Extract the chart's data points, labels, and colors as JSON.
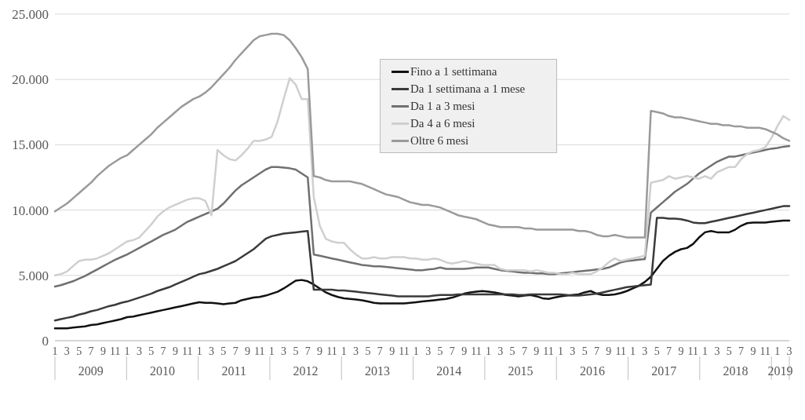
{
  "chart_data": {
    "type": "line",
    "categories": [
      "1",
      null,
      "3",
      null,
      "5",
      null,
      "7",
      null,
      "9",
      null,
      "11",
      null,
      "1",
      null,
      "3",
      null,
      "5",
      null,
      "7",
      null,
      "9",
      null,
      "11",
      null,
      "1",
      null,
      "3",
      null,
      "5",
      null,
      "7",
      null,
      "9",
      null,
      "11",
      null,
      "1",
      null,
      "3",
      null,
      "5",
      null,
      "7",
      null,
      "9",
      null,
      "11",
      null,
      "1",
      null,
      "3",
      null,
      "5",
      null,
      "7",
      null,
      "9",
      null,
      "11",
      null,
      "1",
      null,
      "3",
      null,
      "5",
      null,
      "7",
      null,
      "9",
      null,
      "11",
      null,
      "1",
      null,
      "3",
      null,
      "5",
      null,
      "7",
      null,
      "9",
      null,
      "11",
      null,
      "1",
      null,
      "3",
      null,
      "5",
      null,
      "7",
      null,
      "9",
      null,
      "11",
      null,
      "1",
      null,
      "3",
      null,
      "5",
      null,
      "7",
      null,
      "9",
      null,
      "11",
      null,
      "1",
      null,
      "3",
      null,
      "5",
      null,
      "7",
      null,
      "9",
      null,
      "11",
      null,
      "1",
      null,
      "3"
    ],
    "annotations": [
      "2009",
      "2010",
      "2011",
      "2012",
      "2013",
      "2014",
      "2015",
      "2016",
      "2017",
      "2018",
      "2019"
    ],
    "series": [
      {
        "name": "Fino a 1 settimana",
        "color": "#111111",
        "values": [
          950,
          950,
          950,
          1000,
          1050,
          1100,
          1200,
          1250,
          1350,
          1450,
          1550,
          1650,
          1800,
          1850,
          1950,
          2050,
          2150,
          2250,
          2350,
          2450,
          2550,
          2650,
          2750,
          2850,
          2950,
          2900,
          2900,
          2850,
          2800,
          2850,
          2900,
          3100,
          3200,
          3300,
          3350,
          3450,
          3600,
          3750,
          4000,
          4300,
          4600,
          4650,
          4550,
          4300,
          4000,
          3700,
          3500,
          3350,
          3250,
          3200,
          3150,
          3100,
          3000,
          2900,
          2850,
          2850,
          2850,
          2850,
          2850,
          2900,
          2950,
          3000,
          3050,
          3100,
          3150,
          3200,
          3300,
          3450,
          3600,
          3700,
          3750,
          3800,
          3750,
          3700,
          3600,
          3500,
          3450,
          3400,
          3450,
          3500,
          3400,
          3250,
          3200,
          3300,
          3400,
          3450,
          3500,
          3550,
          3700,
          3800,
          3600,
          3500,
          3500,
          3550,
          3650,
          3800,
          4000,
          4200,
          4500,
          4900,
          5500,
          6100,
          6500,
          6800,
          7000,
          7100,
          7400,
          7900,
          8300,
          8400,
          8300,
          8300,
          8300,
          8500,
          8800,
          9000,
          9050,
          9050,
          9050,
          9100,
          9150,
          9200,
          9200
        ]
      },
      {
        "name": "Da 1 settimana a 1 mese",
        "color": "#3a3a3a",
        "values": [
          1550,
          1650,
          1750,
          1850,
          2000,
          2100,
          2250,
          2350,
          2500,
          2650,
          2750,
          2900,
          3000,
          3150,
          3300,
          3450,
          3600,
          3800,
          3950,
          4100,
          4300,
          4500,
          4700,
          4900,
          5100,
          5200,
          5350,
          5500,
          5700,
          5900,
          6100,
          6400,
          6700,
          7000,
          7400,
          7800,
          8000,
          8100,
          8200,
          8250,
          8300,
          8350,
          8400,
          3900,
          3900,
          3900,
          3900,
          3850,
          3850,
          3800,
          3750,
          3700,
          3650,
          3600,
          3550,
          3500,
          3450,
          3400,
          3400,
          3400,
          3400,
          3400,
          3400,
          3450,
          3500,
          3500,
          3500,
          3550,
          3550,
          3550,
          3550,
          3550,
          3550,
          3550,
          3550,
          3550,
          3550,
          3500,
          3500,
          3550,
          3550,
          3550,
          3550,
          3550,
          3550,
          3500,
          3450,
          3450,
          3500,
          3550,
          3600,
          3700,
          3800,
          3900,
          4000,
          4100,
          4150,
          4200,
          4250,
          4300,
          9400,
          9400,
          9350,
          9350,
          9300,
          9200,
          9050,
          9000,
          9000,
          9100,
          9200,
          9300,
          9400,
          9500,
          9600,
          9700,
          9800,
          9900,
          10000,
          10100,
          10200,
          10300,
          10300
        ]
      },
      {
        "name": "Da 1 a 3 mesi",
        "color": "#707070",
        "values": [
          4150,
          4250,
          4400,
          4550,
          4750,
          4950,
          5200,
          5450,
          5700,
          5950,
          6200,
          6400,
          6600,
          6850,
          7100,
          7350,
          7600,
          7850,
          8100,
          8300,
          8500,
          8800,
          9100,
          9300,
          9500,
          9700,
          9900,
          10100,
          10500,
          11000,
          11500,
          11900,
          12200,
          12500,
          12800,
          13100,
          13300,
          13300,
          13250,
          13200,
          13100,
          12800,
          12500,
          6600,
          6500,
          6400,
          6300,
          6200,
          6100,
          6000,
          5900,
          5800,
          5750,
          5700,
          5700,
          5650,
          5600,
          5550,
          5500,
          5450,
          5400,
          5400,
          5450,
          5500,
          5600,
          5500,
          5500,
          5500,
          5500,
          5550,
          5600,
          5600,
          5600,
          5500,
          5400,
          5350,
          5300,
          5250,
          5200,
          5200,
          5150,
          5150,
          5100,
          5100,
          5150,
          5200,
          5250,
          5300,
          5350,
          5400,
          5450,
          5500,
          5600,
          5800,
          6000,
          6100,
          6150,
          6200,
          6250,
          9800,
          10200,
          10600,
          11000,
          11400,
          11700,
          12000,
          12400,
          12800,
          13100,
          13400,
          13700,
          13900,
          14100,
          14100,
          14200,
          14300,
          14400,
          14500,
          14600,
          14700,
          14750,
          14850,
          14900
        ]
      },
      {
        "name": "Da 4 a 6 mesi",
        "color": "#cfcfcf",
        "values": [
          5000,
          5100,
          5300,
          5700,
          6100,
          6200,
          6200,
          6300,
          6500,
          6700,
          7000,
          7300,
          7600,
          7700,
          7900,
          8400,
          8900,
          9500,
          9900,
          10200,
          10400,
          10600,
          10800,
          10900,
          10900,
          10700,
          9600,
          14600,
          14200,
          13900,
          13800,
          14200,
          14700,
          15300,
          15300,
          15400,
          15600,
          16800,
          18500,
          20100,
          19600,
          18500,
          18500,
          11000,
          8800,
          7800,
          7600,
          7500,
          7500,
          7000,
          6600,
          6300,
          6300,
          6400,
          6300,
          6300,
          6400,
          6400,
          6400,
          6300,
          6300,
          6200,
          6200,
          6300,
          6200,
          6000,
          5900,
          6000,
          6100,
          6000,
          5900,
          5800,
          5800,
          5800,
          5500,
          5400,
          5400,
          5400,
          5400,
          5300,
          5400,
          5300,
          5200,
          5200,
          5100,
          5100,
          5200,
          5100,
          5100,
          5100,
          5300,
          5600,
          6000,
          6300,
          6100,
          6200,
          6300,
          6400,
          6500,
          12100,
          12200,
          12300,
          12600,
          12400,
          12500,
          12600,
          12500,
          12400,
          12600,
          12400,
          12900,
          13100,
          13300,
          13300,
          13900,
          14300,
          14500,
          14600,
          14800,
          15500,
          16400,
          17200,
          16900
        ]
      },
      {
        "name": "Oltre 6 mesi",
        "color": "#9a9a9a",
        "values": [
          9900,
          10200,
          10500,
          10900,
          11300,
          11700,
          12100,
          12600,
          13000,
          13400,
          13700,
          14000,
          14200,
          14600,
          15000,
          15400,
          15800,
          16300,
          16700,
          17100,
          17500,
          17900,
          18200,
          18500,
          18700,
          19000,
          19400,
          19900,
          20400,
          20900,
          21500,
          22000,
          22500,
          23000,
          23300,
          23400,
          23500,
          23500,
          23400,
          23000,
          22400,
          21700,
          20800,
          12600,
          12500,
          12300,
          12200,
          12200,
          12200,
          12200,
          12100,
          12000,
          11800,
          11600,
          11400,
          11200,
          11100,
          11000,
          10800,
          10600,
          10500,
          10400,
          10400,
          10300,
          10200,
          10000,
          9800,
          9600,
          9500,
          9400,
          9300,
          9100,
          8900,
          8800,
          8700,
          8700,
          8700,
          8700,
          8600,
          8600,
          8500,
          8500,
          8500,
          8500,
          8500,
          8500,
          8500,
          8400,
          8400,
          8300,
          8100,
          8000,
          8000,
          8100,
          8000,
          7900,
          7900,
          7900,
          7900,
          17600,
          17500,
          17400,
          17200,
          17100,
          17100,
          17000,
          16900,
          16800,
          16700,
          16600,
          16600,
          16500,
          16500,
          16400,
          16400,
          16300,
          16300,
          16300,
          16200,
          16000,
          15800,
          15500,
          15300
        ]
      }
    ],
    "ylim": [
      0,
      25000
    ],
    "yticks": [
      0,
      {
        "value": 5000,
        "label": "5.000"
      },
      {
        "value": 10000,
        "label": "10.000"
      },
      {
        "value": 15000,
        "label": "15.000"
      },
      {
        "value": 20000,
        "label": "20.000"
      },
      {
        "value": 25000,
        "label": "25.000"
      }
    ],
    "grid": "y",
    "legend": "top",
    "marker": "none",
    "line_style": "solid"
  }
}
